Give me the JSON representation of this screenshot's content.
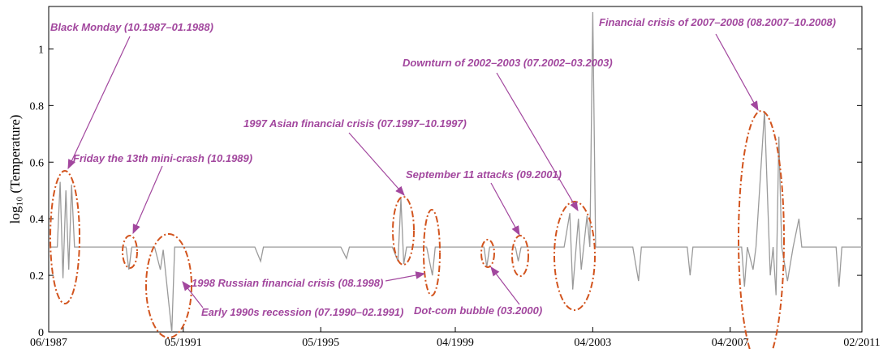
{
  "chart_data": {
    "type": "line",
    "ylabel": "log₁₀ (Temperature)",
    "ylim": [
      0,
      1.15
    ],
    "yticks": [
      0,
      0.2,
      0.4,
      0.6,
      0.8,
      1
    ],
    "xlim": [
      "1987-06",
      "2011-02"
    ],
    "xticks": [
      {
        "value": "1987-06",
        "label": "06/1987"
      },
      {
        "value": "1991-05",
        "label": "05/1991"
      },
      {
        "value": "1995-05",
        "label": "05/1995"
      },
      {
        "value": "1999-04",
        "label": "04/1999"
      },
      {
        "value": "2003-04",
        "label": "04/2003"
      },
      {
        "value": "2007-04",
        "label": "04/2007"
      },
      {
        "value": "2011-02",
        "label": "02/2011"
      }
    ],
    "grid": false,
    "series": [
      {
        "color": "#9a9a9a",
        "x": [
          "1987-06",
          "1987-09",
          "1987-10",
          "1987-11",
          "1987-12",
          "1988-01",
          "1988-02",
          "1988-03",
          "1988-05",
          "1989-09",
          "1989-10",
          "1989-11",
          "1990-07",
          "1990-09",
          "1990-10",
          "1991-01",
          "1991-02",
          "1993-06",
          "1993-08",
          "1993-09",
          "1995-12",
          "1996-02",
          "1996-03",
          "1997-06",
          "1997-08",
          "1997-09",
          "1997-10",
          "1997-11",
          "1998-06",
          "1998-08",
          "1998-09",
          "2000-02",
          "2000-03",
          "2000-04",
          "2001-01",
          "2001-02",
          "2001-03",
          "2002-06",
          "2002-08",
          "2002-09",
          "2002-11",
          "2002-12",
          "2003-02",
          "2003-03",
          "2003-04",
          "2003-05",
          "2004-06",
          "2004-08",
          "2004-09",
          "2006-01",
          "2006-02",
          "2006-03",
          "2007-08",
          "2007-09",
          "2007-10",
          "2007-12",
          "2008-01",
          "2008-04",
          "2008-06",
          "2008-07",
          "2008-08",
          "2008-09",
          "2008-10",
          "2008-12",
          "2009-02",
          "2009-04",
          "2009-05",
          "2010-05",
          "2010-06",
          "2010-07",
          "2011-02"
        ],
        "values": [
          0.3,
          0.3,
          0.53,
          0.19,
          0.5,
          0.22,
          0.52,
          0.3,
          0.3,
          0.3,
          0.22,
          0.3,
          0.3,
          0.22,
          0.29,
          0.0,
          0.3,
          0.3,
          0.25,
          0.3,
          0.3,
          0.26,
          0.3,
          0.3,
          0.25,
          0.47,
          0.24,
          0.3,
          0.3,
          0.2,
          0.3,
          0.3,
          0.23,
          0.3,
          0.3,
          0.25,
          0.3,
          0.3,
          0.42,
          0.15,
          0.4,
          0.22,
          0.41,
          0.3,
          1.13,
          0.3,
          0.3,
          0.18,
          0.3,
          0.3,
          0.2,
          0.3,
          0.3,
          0.16,
          0.3,
          0.22,
          0.3,
          0.78,
          0.2,
          0.3,
          0.13,
          0.69,
          0.3,
          0.18,
          0.3,
          0.4,
          0.3,
          0.3,
          0.16,
          0.3,
          0.3
        ]
      }
    ],
    "annotations": [
      {
        "text": "Black Monday (10.1987–01.1988)"
      },
      {
        "text": "Friday the 13th mini-crash (10.1989)"
      },
      {
        "text": "1997 Asian financial crisis (07.1997–10.1997)"
      },
      {
        "text": "September 11 attacks (09.2001)"
      },
      {
        "text": "Downturn of 2002–2003 (07.2002–03.2003)"
      },
      {
        "text": "Financial crisis of 2007–2008 (08.2007–10.2008)"
      },
      {
        "text": "1998 Russian financial crisis (08.1998)"
      },
      {
        "text": "Early 1990s recession (07.1990–02.1991)"
      },
      {
        "text": "Dot-com bubble (03.2000)"
      }
    ]
  }
}
